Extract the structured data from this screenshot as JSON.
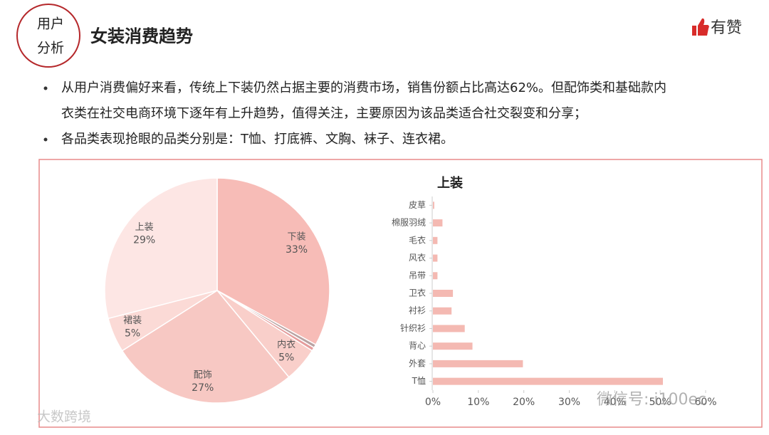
{
  "header": {
    "badge": [
      "用户",
      "分析"
    ],
    "title": "女装消费趋势",
    "logo": "有赞"
  },
  "bullets": [
    [
      "从用户消费偏好来看，传统上下装仍然占据主要的消费市场，销售份额占比高达62%。但配饰类和基础款内",
      "衣类在社交电商环境下逐年有上升趋势，值得关注，主要原因为该品类适合社交裂变和分享；"
    ],
    [
      "各品类表现抢眼的品类分别是：T恤、打底裤、文胸、袜子、连衣裙。"
    ]
  ],
  "watermarks": [
    "微信号: i100ec",
    "大数跨境"
  ],
  "chart_data": [
    {
      "type": "pie",
      "categories": [
        "下装",
        null,
        null,
        "内衣",
        "配饰",
        "裙装",
        "上装"
      ],
      "values": [
        33,
        0.5,
        0.5,
        5,
        27,
        5,
        29
      ],
      "value_labels": [
        "33%",
        null,
        null,
        "5%",
        "27%",
        "5%",
        "29%"
      ],
      "colors": [
        "#f7bcb7",
        "#b9a3a3",
        "#e59c9c",
        "#f9cfca",
        "#f7c8c3",
        "#fbdad6",
        "#fde6e4"
      ]
    },
    {
      "type": "hbar",
      "title": "上装",
      "categories": [
        "皮草",
        "棉服羽绒",
        "毛衣",
        "风衣",
        "吊带",
        "卫衣",
        "衬衫",
        "针织衫",
        "背心",
        "外套",
        "T恤"
      ],
      "values": [
        0.3,
        2.1,
        1.0,
        1.0,
        1.0,
        4.4,
        4.1,
        7.0,
        8.7,
        19.8,
        50.6
      ],
      "color": "#f4b9b2",
      "xlim": [
        0,
        60
      ],
      "xticks": [
        {
          "value": 0,
          "label": "0%"
        },
        {
          "value": 10,
          "label": "10%"
        },
        {
          "value": 20,
          "label": "20%"
        },
        {
          "value": 30,
          "label": "30%"
        },
        {
          "value": 40,
          "label": "40%"
        },
        {
          "value": 50,
          "label": "50%"
        },
        {
          "value": 60,
          "label": "60%"
        }
      ]
    }
  ]
}
